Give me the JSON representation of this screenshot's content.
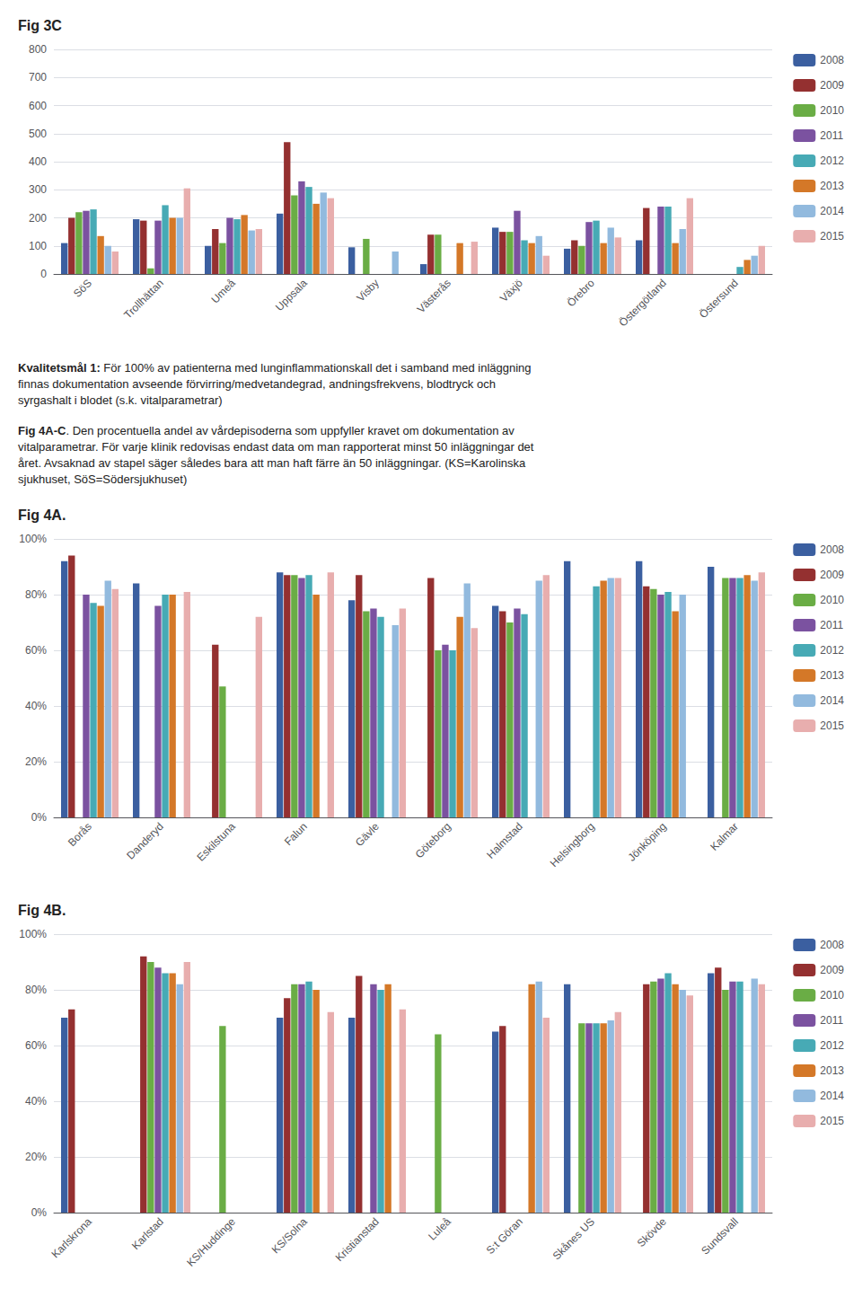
{
  "chart_data": [
    {
      "type": "bar",
      "title": "Fig 3C",
      "categories": [
        "SöS",
        "Trollhättan",
        "Umeå",
        "Uppsala",
        "Visby",
        "Västerås",
        "Växjö",
        "Örebro",
        "Östergötland",
        "Östersund"
      ],
      "series": [
        {
          "name": "2008",
          "color": "#3B5FA0",
          "values": [
            110,
            195,
            100,
            215,
            95,
            35,
            165,
            90,
            120,
            0
          ]
        },
        {
          "name": "2009",
          "color": "#943030",
          "values": [
            200,
            190,
            160,
            470,
            0,
            140,
            150,
            120,
            235,
            0
          ]
        },
        {
          "name": "2010",
          "color": "#6AAD45",
          "values": [
            220,
            20,
            110,
            280,
            125,
            140,
            150,
            100,
            0,
            0
          ]
        },
        {
          "name": "2011",
          "color": "#7B52A0",
          "values": [
            225,
            190,
            200,
            330,
            0,
            0,
            225,
            185,
            240,
            0
          ]
        },
        {
          "name": "2012",
          "color": "#47AAB5",
          "values": [
            230,
            245,
            195,
            310,
            0,
            0,
            120,
            190,
            240,
            25
          ]
        },
        {
          "name": "2013",
          "color": "#D47828",
          "values": [
            135,
            200,
            210,
            250,
            0,
            110,
            110,
            110,
            110,
            50
          ]
        },
        {
          "name": "2014",
          "color": "#92BADE",
          "values": [
            100,
            200,
            155,
            290,
            80,
            0,
            135,
            165,
            160,
            65
          ]
        },
        {
          "name": "2015",
          "color": "#E8AEAE",
          "values": [
            80,
            305,
            160,
            270,
            0,
            115,
            65,
            130,
            270,
            100
          ]
        }
      ],
      "ylim": [
        0,
        800
      ],
      "yticks": [
        0,
        100,
        200,
        300,
        400,
        500,
        600,
        700,
        800
      ],
      "grid": true,
      "legend": "right",
      "annotations": [
        [
          "Kvalitetsmål 1:",
          " För 100% av patienterna med lunginflammationskall det i samband med inläggning\nfinnas dokumentation avseende förvirring/medvetandegrad, andningsfrekvens, blodtryck och\nsyrgashalt i blodet (s.k. vitalparametrar)"
        ],
        [
          "Fig 4A-C",
          ". Den procentuella andel av vårdepisoderna som uppfyller kravet om dokumentation av\nvitalparametrar. För varje klinik redovisas endast data om man rapporterat minst 50 inläggningar det\nåret. Avsaknad av stapel säger således bara att man haft färre än 50 inläggningar. (KS=Karolinska\nsjukhuset, SöS=Södersjukhuset)"
        ]
      ]
    },
    {
      "type": "bar",
      "title": "Fig 4A.",
      "categories": [
        "Borås",
        "Danderyd",
        "Eskilstuna",
        "Falun",
        "Gävle",
        "Göteborg",
        "Halmstad",
        "Helsingborg",
        "Jönköping",
        "Kalmar"
      ],
      "series": [
        {
          "name": "2008",
          "color": "#3B5FA0",
          "values": [
            0.92,
            0.84,
            0.0,
            0.88,
            0.78,
            0.0,
            0.76,
            0.92,
            0.92,
            0.9
          ]
        },
        {
          "name": "2009",
          "color": "#943030",
          "values": [
            0.94,
            0.0,
            0.62,
            0.87,
            0.87,
            0.86,
            0.74,
            0.0,
            0.83,
            0.0
          ]
        },
        {
          "name": "2010",
          "color": "#6AAD45",
          "values": [
            0.0,
            0.0,
            0.47,
            0.87,
            0.74,
            0.6,
            0.7,
            0.0,
            0.82,
            0.86
          ]
        },
        {
          "name": "2011",
          "color": "#7B52A0",
          "values": [
            0.8,
            0.76,
            0.0,
            0.86,
            0.75,
            0.62,
            0.75,
            0.0,
            0.8,
            0.86
          ]
        },
        {
          "name": "2012",
          "color": "#47AAB5",
          "values": [
            0.77,
            0.8,
            0.0,
            0.87,
            0.72,
            0.6,
            0.73,
            0.83,
            0.81,
            0.86
          ]
        },
        {
          "name": "2013",
          "color": "#D47828",
          "values": [
            0.76,
            0.8,
            0.0,
            0.8,
            0.0,
            0.72,
            0.0,
            0.85,
            0.74,
            0.87
          ]
        },
        {
          "name": "2014",
          "color": "#92BADE",
          "values": [
            0.85,
            0.0,
            0.0,
            0.0,
            0.69,
            0.84,
            0.85,
            0.86,
            0.8,
            0.85
          ]
        },
        {
          "name": "2015",
          "color": "#E8AEAE",
          "values": [
            0.82,
            0.81,
            0.72,
            0.88,
            0.75,
            0.68,
            0.87,
            0.86,
            0.0,
            0.88
          ]
        }
      ],
      "ylim": [
        0.0,
        1.0
      ],
      "yticks": [
        {
          "value": 0.0,
          "label": "0%"
        },
        {
          "value": 0.2,
          "label": "20%"
        },
        {
          "value": 0.4,
          "label": "40%"
        },
        {
          "value": 0.6,
          "label": "60%"
        },
        {
          "value": 0.8,
          "label": "80%"
        },
        {
          "value": 1.0,
          "label": "100%"
        }
      ],
      "grid": true,
      "legend": "right"
    },
    {
      "type": "bar",
      "title": "Fig 4B.",
      "categories": [
        "Karlskrona",
        "Karlstad",
        "KS/Huddinge",
        "KS/Solna",
        "Kristianstad",
        "Luleå",
        "S:t Göran",
        "Skånes US",
        "Skövde",
        "Sundsvall"
      ],
      "series": [
        {
          "name": "2008",
          "color": "#3B5FA0",
          "values": [
            0.7,
            0.0,
            0.0,
            0.7,
            0.7,
            0.0,
            0.65,
            0.82,
            0.0,
            0.86
          ]
        },
        {
          "name": "2009",
          "color": "#943030",
          "values": [
            0.73,
            0.92,
            0.0,
            0.77,
            0.85,
            0.0,
            0.67,
            0.0,
            0.82,
            0.88
          ]
        },
        {
          "name": "2010",
          "color": "#6AAD45",
          "values": [
            0.0,
            0.9,
            0.67,
            0.82,
            0.0,
            0.64,
            0.0,
            0.68,
            0.83,
            0.8
          ]
        },
        {
          "name": "2011",
          "color": "#7B52A0",
          "values": [
            0.0,
            0.88,
            0.0,
            0.82,
            0.82,
            0.0,
            0.0,
            0.68,
            0.84,
            0.83
          ]
        },
        {
          "name": "2012",
          "color": "#47AAB5",
          "values": [
            0.0,
            0.86,
            0.0,
            0.83,
            0.8,
            0.0,
            0.0,
            0.68,
            0.86,
            0.83
          ]
        },
        {
          "name": "2013",
          "color": "#D47828",
          "values": [
            0.0,
            0.86,
            0.0,
            0.8,
            0.82,
            0.0,
            0.82,
            0.68,
            0.82,
            0.0
          ]
        },
        {
          "name": "2014",
          "color": "#92BADE",
          "values": [
            0.0,
            0.82,
            0.0,
            0.0,
            0.0,
            0.0,
            0.83,
            0.69,
            0.8,
            0.84
          ]
        },
        {
          "name": "2015",
          "color": "#E8AEAE",
          "values": [
            0.0,
            0.9,
            0.0,
            0.72,
            0.73,
            0.0,
            0.7,
            0.72,
            0.78,
            0.82
          ]
        }
      ],
      "ylim": [
        0.0,
        1.0
      ],
      "yticks": [
        {
          "value": 0.0,
          "label": "0%"
        },
        {
          "value": 0.2,
          "label": "20%"
        },
        {
          "value": 0.4,
          "label": "40%"
        },
        {
          "value": 0.6,
          "label": "60%"
        },
        {
          "value": 0.8,
          "label": "80%"
        },
        {
          "value": 1.0,
          "label": "100%"
        }
      ],
      "grid": true,
      "legend": "right"
    }
  ]
}
